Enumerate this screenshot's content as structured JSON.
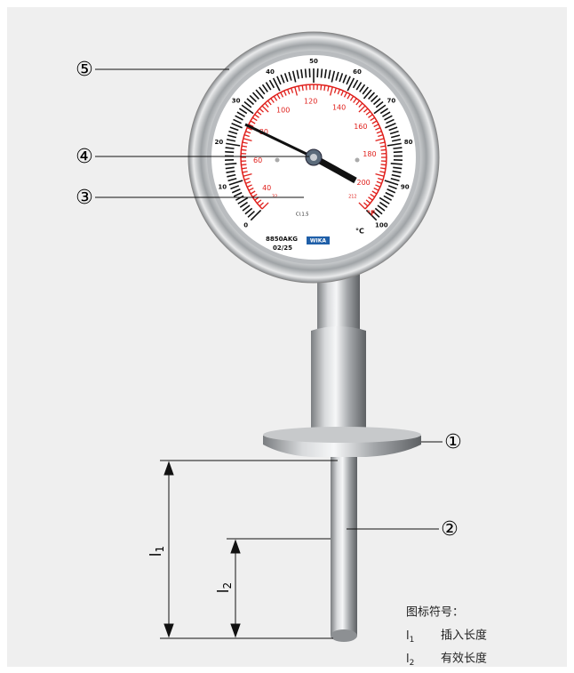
{
  "callouts": [
    {
      "label": "⑤"
    },
    {
      "label": "④"
    },
    {
      "label": "③"
    },
    {
      "label": "①"
    },
    {
      "label": "②"
    }
  ],
  "dimensions": [
    {
      "symbol": "l",
      "subscript": "1"
    },
    {
      "symbol": "l",
      "subscript": "2"
    }
  ],
  "legend": {
    "title": "图标符号：",
    "items": [
      {
        "symbol": "l",
        "subscript": "1",
        "text": "插入长度"
      },
      {
        "symbol": "l",
        "subscript": "2",
        "text": "有效长度"
      }
    ]
  },
  "gauge": {
    "celsius_labels": [
      "0",
      "10",
      "20",
      "30",
      "40",
      "50",
      "60",
      "70",
      "80",
      "90",
      "100"
    ],
    "fahrenheit_labels": [
      "32",
      "40",
      "60",
      "80",
      "100",
      "120",
      "140",
      "160",
      "180",
      "200",
      "212"
    ],
    "unit_c": "°C",
    "unit_f": "°F",
    "accuracy_class": "Cl.1.5",
    "model": "8850AKG",
    "date": "02/25",
    "brand": "WIKA"
  }
}
